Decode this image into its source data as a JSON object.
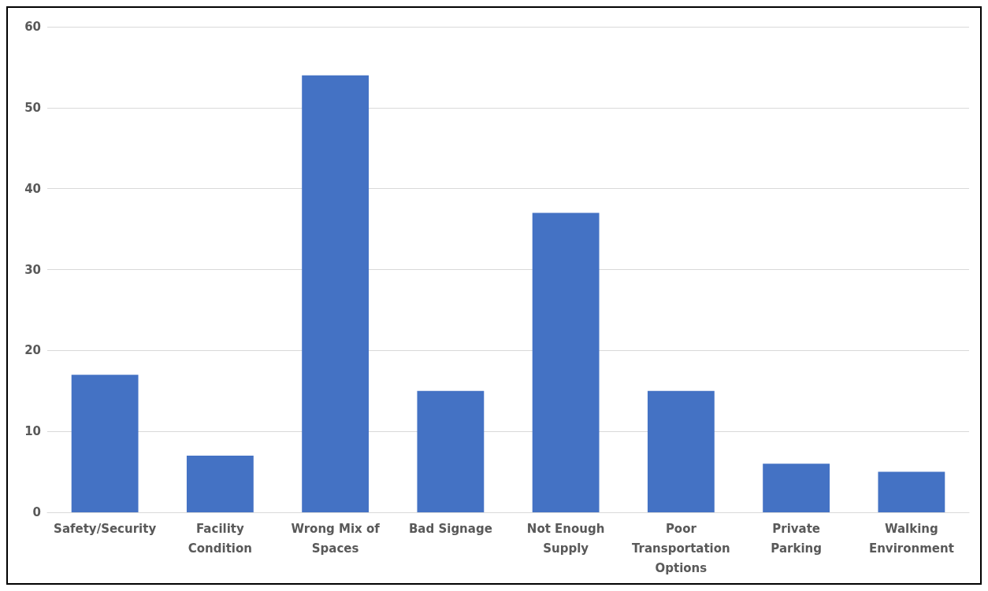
{
  "chart_data": {
    "type": "bar",
    "categories": [
      "Safety/Security",
      "Facility Condition",
      "Wrong Mix of Spaces",
      "Bad Signage",
      "Not Enough Supply",
      "Poor Transportation Options",
      "Private Parking",
      "Walking Environment"
    ],
    "values": [
      17,
      7,
      54,
      15,
      37,
      15,
      6,
      5
    ],
    "color": "#4472c4",
    "ylim": [
      0,
      60
    ],
    "yticks": [
      0,
      10,
      20,
      30,
      40,
      50,
      60
    ],
    "grid": "y"
  }
}
